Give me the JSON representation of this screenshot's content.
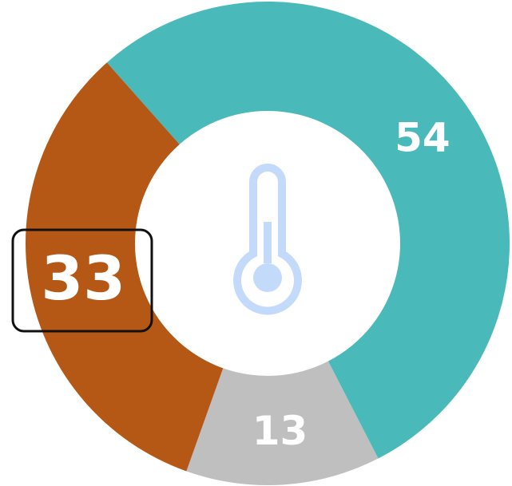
{
  "chart_data": {
    "type": "donut",
    "values": [
      54,
      13,
      33
    ],
    "colors": [
      "#4ab9b9",
      "#bfbfbf",
      "#b65815"
    ]
  }
}
